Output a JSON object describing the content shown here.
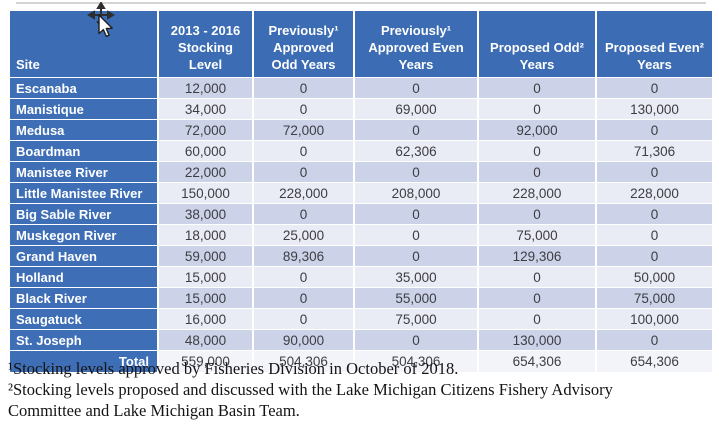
{
  "icons": {
    "cursor": "move-arrow-cursor"
  },
  "colors": {
    "header_blue": "#3b6cb4",
    "site_blue": "#3e6eb6",
    "band_dark": "#ccd3e8",
    "band_light": "#e9ebf5",
    "total_row_bg": "#f3f4fa",
    "number_text": "#3d3d42"
  },
  "table": {
    "header": {
      "site": "Site",
      "stocking": "2013 - 2016\nStocking\nLevel",
      "prev_odd": "Previously¹\nApproved\nOdd Years",
      "prev_even": "Previously¹\nApproved Even\nYears",
      "prop_odd": "Proposed Odd²\nYears",
      "prop_even": "Proposed Even²\nYears"
    },
    "rows": [
      {
        "site": "Escanaba",
        "values": [
          "12,000",
          "0",
          "0",
          "0",
          "0"
        ]
      },
      {
        "site": "Manistique",
        "values": [
          "34,000",
          "0",
          "69,000",
          "0",
          "130,000"
        ]
      },
      {
        "site": "Medusa",
        "values": [
          "72,000",
          "72,000",
          "0",
          "92,000",
          "0"
        ]
      },
      {
        "site": "Boardman",
        "values": [
          "60,000",
          "0",
          "62,306",
          "0",
          "71,306"
        ]
      },
      {
        "site": "Manistee River",
        "values": [
          "22,000",
          "0",
          "0",
          "0",
          "0"
        ]
      },
      {
        "site": "Little Manistee River",
        "values": [
          "150,000",
          "228,000",
          "208,000",
          "228,000",
          "228,000"
        ]
      },
      {
        "site": "Big Sable River",
        "values": [
          "38,000",
          "0",
          "0",
          "0",
          "0"
        ]
      },
      {
        "site": "Muskegon River",
        "values": [
          "18,000",
          "25,000",
          "0",
          "75,000",
          "0"
        ]
      },
      {
        "site": "Grand Haven",
        "values": [
          "59,000",
          "89,306",
          "0",
          "129,306",
          "0"
        ]
      },
      {
        "site": "Holland",
        "values": [
          "15,000",
          "0",
          "35,000",
          "0",
          "50,000"
        ]
      },
      {
        "site": "Black River",
        "values": [
          "15,000",
          "0",
          "55,000",
          "0",
          "75,000"
        ]
      },
      {
        "site": "Saugatuck",
        "values": [
          "16,000",
          "0",
          "75,000",
          "0",
          "100,000"
        ]
      },
      {
        "site": "St. Joseph",
        "values": [
          "48,000",
          "90,000",
          "0",
          "130,000",
          "0"
        ]
      }
    ],
    "total": {
      "label": "Total",
      "values": [
        "559,000",
        "504,306",
        "504,306",
        "654,306",
        "654,306"
      ]
    }
  },
  "footnotes": [
    "¹Stocking levels approved by Fisheries Division in October of 2018.",
    "²Stocking levels proposed and discussed with the Lake Michigan Citizens Fishery Advisory Committee and Lake Michigan Basin Team."
  ]
}
